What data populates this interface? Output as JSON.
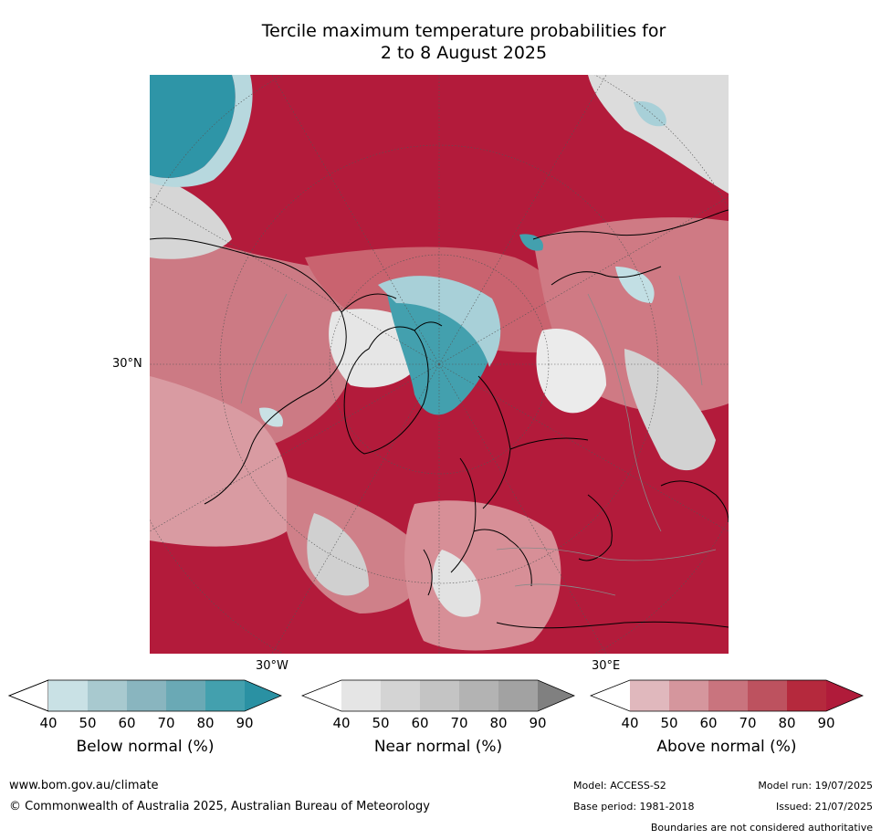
{
  "title": {
    "line1": "Tercile maximum temperature probabilities for",
    "line2": "2 to 8 August 2025"
  },
  "map": {
    "projection": "north-polar-stereographic",
    "labels": {
      "lat_30n": "30°N",
      "lon_30w": "30°W",
      "lon_30e": "30°E"
    },
    "colors": {
      "above": [
        "#e0b8bd",
        "#d5969d",
        "#c9747e",
        "#bd525f",
        "#b5293d",
        "#b01b3a"
      ],
      "near": [
        "#e5e5e5",
        "#d4d4d4",
        "#c4c4c4",
        "#b3b3b3",
        "#a2a2a2",
        "#808080"
      ],
      "below": [
        "#c9e1e5",
        "#a8c9cf",
        "#89b5bf",
        "#6aa9b5",
        "#43a0ae",
        "#2a91a3"
      ]
    }
  },
  "legend": {
    "ticks": [
      "40",
      "50",
      "60",
      "70",
      "80",
      "90"
    ],
    "below": {
      "label": "Below normal (%)"
    },
    "near": {
      "label": "Near normal (%)"
    },
    "above": {
      "label": "Above normal (%)"
    }
  },
  "footer": {
    "website": "www.bom.gov.au/climate",
    "copyright": "© Commonwealth of Australia 2025, Australian Bureau of Meteorology",
    "model": "Model: ACCESS-S2",
    "model_run": "Model run: 19/07/2025",
    "base_period": "Base period: 1981-2018",
    "issued": "Issued: 21/07/2025",
    "disclaimer": "Boundaries are not considered authoritative"
  }
}
